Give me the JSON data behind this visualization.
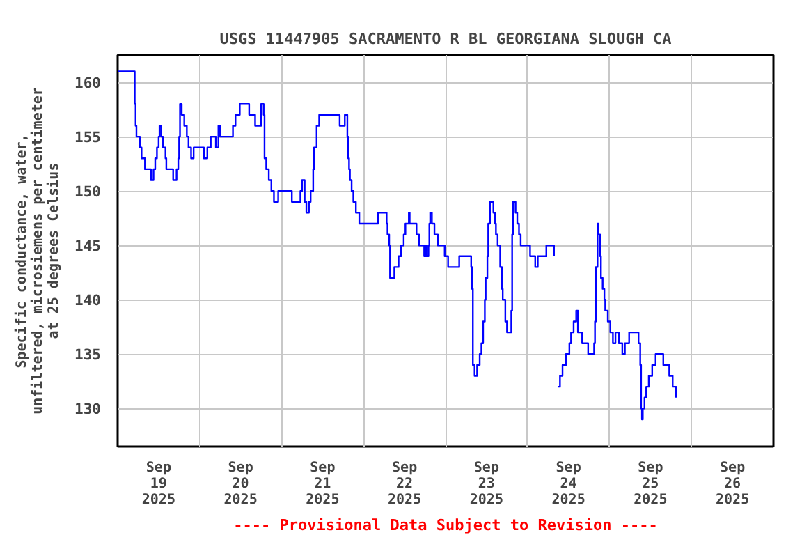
{
  "chart_data": {
    "type": "step",
    "title": "USGS 11447905 SACRAMENTO R BL GEORGIANA SLOUGH CA",
    "ylabel": "Specific conductance, water,\nunfiltered, microsiemens per centimeter\nat 25 degrees Celsius",
    "annotations": [
      "---- Provisional Data Subject to Revision ----"
    ],
    "x": [
      "2025-09-19T00:00",
      "2025-09-19T05:00",
      "2025-09-19T05:15",
      "2025-09-19T05:30",
      "2025-09-19T06:30",
      "2025-09-19T07:00",
      "2025-09-19T08:00",
      "2025-09-19T09:45",
      "2025-09-19T10:30",
      "2025-09-19T11:00",
      "2025-09-19T11:30",
      "2025-09-19T12:00",
      "2025-09-19T12:15",
      "2025-09-19T12:45",
      "2025-09-19T13:15",
      "2025-09-19T14:00",
      "2025-09-19T14:15",
      "2025-09-19T16:15",
      "2025-09-19T17:15",
      "2025-09-19T17:45",
      "2025-09-19T18:00",
      "2025-09-19T18:15",
      "2025-09-19T18:45",
      "2025-09-19T19:30",
      "2025-09-19T20:15",
      "2025-09-19T20:45",
      "2025-09-19T21:30",
      "2025-09-19T22:15",
      "2025-09-20T01:15",
      "2025-09-20T02:15",
      "2025-09-20T03:15",
      "2025-09-20T04:45",
      "2025-09-20T05:30",
      "2025-09-20T06:00",
      "2025-09-20T09:45",
      "2025-09-20T10:30",
      "2025-09-20T11:45",
      "2025-09-20T14:30",
      "2025-09-20T16:15",
      "2025-09-20T18:00",
      "2025-09-20T18:45",
      "2025-09-20T19:00",
      "2025-09-20T19:30",
      "2025-09-20T20:15",
      "2025-09-20T21:00",
      "2025-09-20T21:45",
      "2025-09-20T23:00",
      "2025-09-21T03:00",
      "2025-09-21T05:30",
      "2025-09-21T06:00",
      "2025-09-21T06:45",
      "2025-09-21T07:15",
      "2025-09-21T08:00",
      "2025-09-21T08:30",
      "2025-09-21T09:15",
      "2025-09-21T09:30",
      "2025-09-21T10:15",
      "2025-09-21T11:00",
      "2025-09-21T17:00",
      "2025-09-21T18:30",
      "2025-09-21T19:15",
      "2025-09-21T19:30",
      "2025-09-21T19:45",
      "2025-09-21T20:00",
      "2025-09-21T20:30",
      "2025-09-21T21:00",
      "2025-09-21T21:45",
      "2025-09-21T22:45",
      "2025-09-22T04:15",
      "2025-09-22T06:45",
      "2025-09-22T07:00",
      "2025-09-22T07:30",
      "2025-09-22T07:45",
      "2025-09-22T09:00",
      "2025-09-22T10:15",
      "2025-09-22T11:00",
      "2025-09-22T11:45",
      "2025-09-22T12:15",
      "2025-09-22T13:15",
      "2025-09-22T13:30",
      "2025-09-22T15:30",
      "2025-09-22T16:15",
      "2025-09-22T17:45",
      "2025-09-22T18:15",
      "2025-09-22T18:30",
      "2025-09-22T19:00",
      "2025-09-22T19:15",
      "2025-09-22T19:30",
      "2025-09-22T20:00",
      "2025-09-22T20:45",
      "2025-09-22T21:45",
      "2025-09-22T23:45",
      "2025-09-23T00:45",
      "2025-09-23T04:00",
      "2025-09-23T07:30",
      "2025-09-23T07:45",
      "2025-09-23T08:00",
      "2025-09-23T08:30",
      "2025-09-23T09:15",
      "2025-09-23T10:00",
      "2025-09-23T10:30",
      "2025-09-23T11:00",
      "2025-09-23T11:30",
      "2025-09-23T11:45",
      "2025-09-23T12:15",
      "2025-09-23T12:30",
      "2025-09-23T13:00",
      "2025-09-23T14:00",
      "2025-09-23T14:30",
      "2025-09-23T14:45",
      "2025-09-23T15:15",
      "2025-09-23T16:00",
      "2025-09-23T16:30",
      "2025-09-23T16:45",
      "2025-09-23T17:30",
      "2025-09-23T18:00",
      "2025-09-23T19:15",
      "2025-09-23T19:30",
      "2025-09-23T19:45",
      "2025-09-23T20:30",
      "2025-09-23T21:00",
      "2025-09-23T21:30",
      "2025-09-23T22:00",
      "2025-09-24T00:45",
      "2025-09-24T02:15",
      "2025-09-24T03:00",
      "2025-09-24T05:30",
      "2025-09-24T07:45",
      "2025-09-24T08:15",
      "2025-09-24T09:00",
      "2025-09-24T09:30",
      "2025-09-24T10:15",
      "2025-09-24T11:15",
      "2025-09-24T12:15",
      "2025-09-24T12:45",
      "2025-09-24T13:30",
      "2025-09-24T14:15",
      "2025-09-24T14:45",
      "2025-09-24T16:00",
      "2025-09-24T17:45",
      "2025-09-24T19:30",
      "2025-09-24T19:45",
      "2025-09-24T20:00",
      "2025-09-24T20:30",
      "2025-09-24T20:45",
      "2025-09-24T21:15",
      "2025-09-24T21:30",
      "2025-09-24T22:00",
      "2025-09-24T22:30",
      "2025-09-24T22:45",
      "2025-09-24T23:30",
      "2025-09-25T00:15",
      "2025-09-25T01:00",
      "2025-09-25T01:45",
      "2025-09-25T02:45",
      "2025-09-25T03:45",
      "2025-09-25T04:30",
      "2025-09-25T05:45",
      "2025-09-25T08:30",
      "2025-09-25T09:00",
      "2025-09-25T09:15",
      "2025-09-25T09:30",
      "2025-09-25T09:45",
      "2025-09-25T10:15",
      "2025-09-25T10:45",
      "2025-09-25T11:30",
      "2025-09-25T12:30",
      "2025-09-25T13:30",
      "2025-09-25T15:45",
      "2025-09-25T17:30",
      "2025-09-25T18:30",
      "2025-09-25T19:30"
    ],
    "series": [
      {
        "color": "#0000ff",
        "values": [
          161,
          158,
          156,
          155,
          154,
          153,
          152,
          151,
          152,
          153,
          154,
          155,
          156,
          155,
          154,
          153,
          152,
          151,
          152,
          153,
          155,
          158,
          157,
          156,
          155,
          154,
          153,
          154,
          153,
          154,
          155,
          154,
          156,
          155,
          156,
          157,
          158,
          157,
          156,
          158,
          157,
          153,
          152,
          151,
          150,
          149,
          150,
          149,
          150,
          151,
          149,
          148,
          149,
          150,
          152,
          154,
          156,
          157,
          156,
          157,
          155,
          153,
          152,
          151,
          150,
          149,
          148,
          147,
          148,
          147,
          146,
          145,
          142,
          143,
          144,
          145,
          146,
          147,
          148,
          147,
          146,
          145,
          144,
          145,
          144,
          145,
          147,
          148,
          147,
          146,
          145,
          144,
          143,
          144,
          143,
          141,
          134,
          133,
          134,
          135,
          136,
          138,
          140,
          142,
          144,
          147,
          149,
          148,
          147,
          146,
          145,
          143,
          141,
          140,
          138,
          137,
          139,
          146,
          149,
          148,
          147,
          146,
          145,
          144,
          143,
          144,
          145,
          144,
          null,
          132,
          133,
          134,
          135,
          136,
          137,
          138,
          139,
          137,
          136,
          135,
          136,
          138,
          143,
          147,
          146,
          144,
          142,
          141,
          140,
          139,
          138,
          137,
          136,
          137,
          136,
          135,
          136,
          137,
          136,
          134,
          130,
          129,
          130,
          131,
          132,
          133,
          134,
          135,
          134,
          133,
          132,
          131
        ]
      }
    ],
    "xlim": [
      "2025-09-19T00:00",
      "2025-09-27T00:00"
    ],
    "xticks": [
      {
        "value": "2025-09-19T12:00",
        "label": "Sep\n19\n2025"
      },
      {
        "value": "2025-09-20T00:00",
        "label": null
      },
      {
        "value": "2025-09-20T12:00",
        "label": "Sep\n20\n2025"
      },
      {
        "value": "2025-09-21T00:00",
        "label": null
      },
      {
        "value": "2025-09-21T12:00",
        "label": "Sep\n21\n2025"
      },
      {
        "value": "2025-09-22T00:00",
        "label": null
      },
      {
        "value": "2025-09-22T12:00",
        "label": "Sep\n22\n2025"
      },
      {
        "value": "2025-09-23T00:00",
        "label": null
      },
      {
        "value": "2025-09-23T12:00",
        "label": "Sep\n23\n2025"
      },
      {
        "value": "2025-09-24T00:00",
        "label": null
      },
      {
        "value": "2025-09-24T12:00",
        "label": "Sep\n24\n2025"
      },
      {
        "value": "2025-09-25T00:00",
        "label": null
      },
      {
        "value": "2025-09-25T12:00",
        "label": "Sep\n25\n2025"
      },
      {
        "value": "2025-09-26T00:00",
        "label": null
      },
      {
        "value": "2025-09-26T12:00",
        "label": "Sep\n26\n2025"
      }
    ],
    "ylim": [
      126.5,
      162.5
    ],
    "yticks": [
      130,
      135,
      140,
      145,
      150,
      155,
      160
    ],
    "grid": true
  }
}
